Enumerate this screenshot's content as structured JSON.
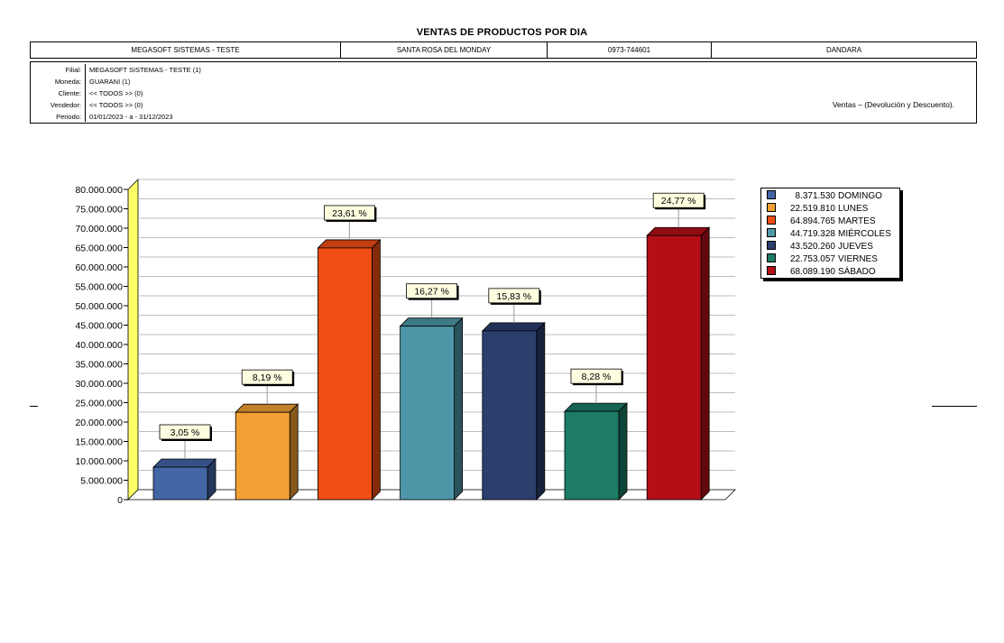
{
  "report": {
    "title": "VENTAS DE PRODUCTOS POR DIA",
    "header": [
      "MEGASOFT SISTEMAS -  TESTE",
      "SANTA ROSA DEL MONDAY",
      "0973-744601",
      "DANDARA"
    ],
    "filters": [
      {
        "label": "Filial:",
        "value": "MEGASOFT SISTEMAS -  TESTE (1)"
      },
      {
        "label": "Moneda:",
        "value": "GUARANI (1)"
      },
      {
        "label": "Cliente:",
        "value": "<< TODOS >> (0)"
      },
      {
        "label": "Vendedor:",
        "value": "<< TODOS >> (0)"
      },
      {
        "label": "Periodo:",
        "value": "01/01/2023 -  a  - 31/12/2023"
      }
    ],
    "note": "Ventas – (Devolución y Descuento)."
  },
  "chart_data": {
    "type": "bar",
    "categories": [
      "DOMINGO",
      "LUNES",
      "MARTES",
      "MIÉRCOLES",
      "JUEVES",
      "VIERNES",
      "SÁBADO"
    ],
    "values": [
      8371530,
      22519810,
      64894765,
      44719328,
      43520260,
      22753057,
      68089190
    ],
    "value_labels": [
      "8.371.530",
      "22.519.810",
      "64.894.765",
      "44.719.328",
      "43.520.260",
      "22.753.057",
      "68.089.190"
    ],
    "percent_labels": [
      "3,05 %",
      "8,19 %",
      "23,61 %",
      "16,27 %",
      "15,83 %",
      "8,28 %",
      "24,77 %"
    ],
    "colors": [
      "#4465a6",
      "#f2a033",
      "#f04e14",
      "#4e97a8",
      "#2b3e6c",
      "#1c7c66",
      "#b40f16"
    ],
    "ylim": [
      0,
      80000000
    ],
    "yticks": [
      0,
      5000000,
      10000000,
      15000000,
      20000000,
      25000000,
      30000000,
      35000000,
      40000000,
      45000000,
      50000000,
      55000000,
      60000000,
      65000000,
      70000000,
      75000000,
      80000000
    ],
    "ytick_labels": [
      "0",
      "5.000.000",
      "10.000.000",
      "15.000.000",
      "20.000.000",
      "25.000.000",
      "30.000.000",
      "35.000.000",
      "40.000.000",
      "45.000.000",
      "50.000.000",
      "55.000.000",
      "60.000.000",
      "65.000.000",
      "70.000.000",
      "75.000.000",
      "80.000.000"
    ],
    "grid": true,
    "legend": "right",
    "wall_color": "#ffff66"
  }
}
